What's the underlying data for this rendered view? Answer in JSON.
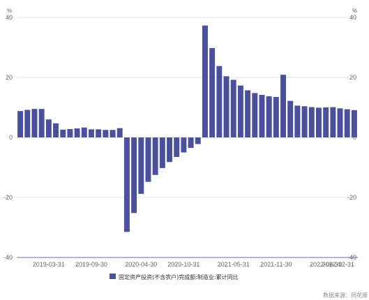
{
  "chart_data": {
    "type": "bar",
    "y_unit_left": "%",
    "y_unit_right": "%",
    "ylim": [
      -40,
      40
    ],
    "y_ticks": [
      40,
      20,
      0,
      -20,
      -40
    ],
    "x_tick_labels": [
      "2019-03-31",
      "2019-09-30",
      "2020-04-30",
      "2020-10-31",
      "2021-05-31",
      "2021-11-30",
      "2022-06-30",
      "2022-12-31"
    ],
    "series": [
      {
        "name": "固定资产投资(不含农户)完成额:制造业:累计同比",
        "color": "#4a5099",
        "values": [
          8.8,
          9.2,
          9.5,
          9.5,
          6.0,
          4.7,
          2.6,
          2.8,
          3.0,
          3.3,
          2.7,
          2.7,
          2.5,
          2.5,
          3.1,
          -31.5,
          -25.2,
          -18.8,
          -14.8,
          -12.5,
          -10.2,
          -8.2,
          -6.5,
          -5.0,
          -3.5,
          -2.2,
          37.3,
          29.8,
          23.8,
          20.4,
          19.2,
          17.3,
          15.7,
          14.8,
          14.2,
          13.7,
          13.5,
          20.9,
          12.2,
          10.6,
          10.4,
          10.1,
          9.9,
          10.0,
          10.1,
          9.7,
          9.4,
          9.1
        ]
      }
    ],
    "source_text": "数据来源：同花顺"
  }
}
